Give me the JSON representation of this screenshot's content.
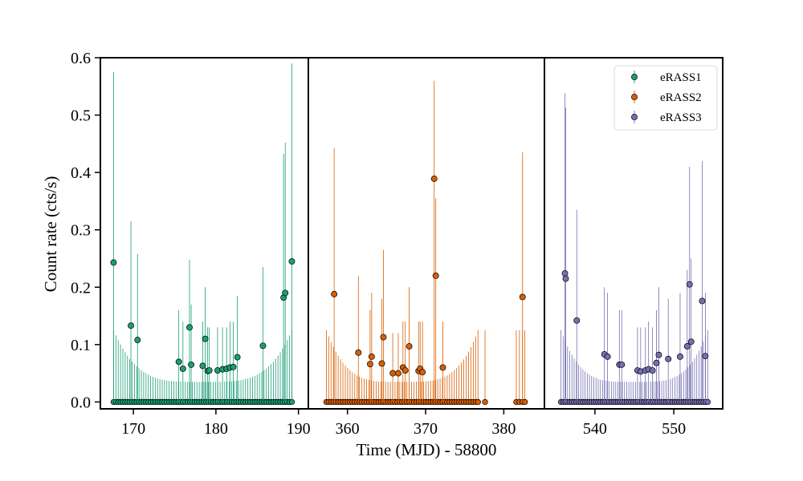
{
  "chart_data": {
    "type": "scatter",
    "xlabel": "Time (MJD) - 58800",
    "ylabel": "Count rate (cts/s)",
    "ylim": [
      -0.012,
      0.6
    ],
    "yticks": [
      "0.0",
      "0.1",
      "0.2",
      "0.3",
      "0.4",
      "0.5",
      "0.6"
    ],
    "legend": {
      "placement": "top-right"
    },
    "panels": [
      {
        "xlim": [
          166.0,
          191.2
        ],
        "xticks": [
          "170",
          "180",
          "190"
        ],
        "series": [
          {
            "name": "eRASS1",
            "color": "#1b9e77",
            "zero_points": {
              "start": 167.6,
              "end": 189.2,
              "count": 78
            },
            "points": [
              {
                "x": 167.6,
                "y": 0.243,
                "hi": 0.575
              },
              {
                "x": 169.7,
                "y": 0.133,
                "hi": 0.315
              },
              {
                "x": 170.5,
                "y": 0.108,
                "hi": 0.258
              },
              {
                "x": 175.5,
                "y": 0.07,
                "hi": 0.16
              },
              {
                "x": 176.0,
                "y": 0.058,
                "hi": 0.14
              },
              {
                "x": 176.8,
                "y": 0.13,
                "hi": 0.248
              },
              {
                "x": 177.0,
                "y": 0.065,
                "hi": 0.17
              },
              {
                "x": 178.4,
                "y": 0.063,
                "hi": 0.14
              },
              {
                "x": 178.7,
                "y": 0.11,
                "hi": 0.2
              },
              {
                "x": 179.0,
                "y": 0.054,
                "hi": 0.13
              },
              {
                "x": 179.2,
                "y": 0.055,
                "hi": 0.13
              },
              {
                "x": 180.2,
                "y": 0.055,
                "hi": 0.13
              },
              {
                "x": 180.8,
                "y": 0.057,
                "hi": 0.13
              },
              {
                "x": 181.3,
                "y": 0.058,
                "hi": 0.13
              },
              {
                "x": 181.7,
                "y": 0.06,
                "hi": 0.14
              },
              {
                "x": 182.1,
                "y": 0.061,
                "hi": 0.14
              },
              {
                "x": 182.6,
                "y": 0.078,
                "hi": 0.185
              },
              {
                "x": 185.7,
                "y": 0.098,
                "hi": 0.235
              },
              {
                "x": 188.2,
                "y": 0.182,
                "hi": 0.432
              },
              {
                "x": 188.4,
                "y": 0.19,
                "hi": 0.452
              },
              {
                "x": 189.2,
                "y": 0.245,
                "hi": 0.59
              }
            ]
          }
        ]
      },
      {
        "xlim": [
          355.0,
          385.2
        ],
        "xticks": [
          "360",
          "370",
          "380"
        ],
        "series": [
          {
            "name": "eRASS2",
            "color": "#d95f02",
            "zero_points": {
              "start": 357.3,
              "end": 376.7,
              "count": 65
            },
            "extra_zero_x": [
              377.6,
              381.6,
              382.0,
              382.4,
              382.7
            ],
            "points": [
              {
                "x": 358.3,
                "y": 0.188,
                "hi": 0.443
              },
              {
                "x": 361.4,
                "y": 0.086,
                "hi": 0.22
              },
              {
                "x": 362.9,
                "y": 0.066,
                "hi": 0.16
              },
              {
                "x": 363.1,
                "y": 0.079,
                "hi": 0.19
              },
              {
                "x": 364.4,
                "y": 0.067,
                "hi": 0.18
              },
              {
                "x": 364.6,
                "y": 0.113,
                "hi": 0.265
              },
              {
                "x": 365.8,
                "y": 0.05,
                "hi": 0.12
              },
              {
                "x": 366.5,
                "y": 0.05,
                "hi": 0.12
              },
              {
                "x": 367.1,
                "y": 0.06,
                "hi": 0.14
              },
              {
                "x": 367.4,
                "y": 0.055,
                "hi": 0.14
              },
              {
                "x": 367.9,
                "y": 0.097,
                "hi": 0.2
              },
              {
                "x": 369.1,
                "y": 0.054,
                "hi": 0.14
              },
              {
                "x": 369.3,
                "y": 0.058,
                "hi": 0.14
              },
              {
                "x": 369.6,
                "y": 0.052,
                "hi": 0.14
              },
              {
                "x": 371.1,
                "y": 0.389,
                "hi": 0.56
              },
              {
                "x": 371.3,
                "y": 0.22,
                "hi": 0.355
              },
              {
                "x": 372.2,
                "y": 0.06,
                "hi": 0.14
              },
              {
                "x": 382.4,
                "y": 0.183,
                "hi": 0.435
              }
            ]
          }
        ]
      },
      {
        "xlim": [
          533.6,
          556.2
        ],
        "xticks": [
          "540",
          "550"
        ],
        "series": [
          {
            "name": "eRASS3",
            "color": "#7570b3",
            "zero_points": {
              "start": 535.7,
              "end": 554.3,
              "count": 68
            },
            "points": [
              {
                "x": 536.2,
                "y": 0.224,
                "hi": 0.538
              },
              {
                "x": 536.3,
                "y": 0.215,
                "hi": 0.513
              },
              {
                "x": 537.7,
                "y": 0.142,
                "hi": 0.335
              },
              {
                "x": 541.2,
                "y": 0.083,
                "hi": 0.2
              },
              {
                "x": 541.6,
                "y": 0.079,
                "hi": 0.19
              },
              {
                "x": 543.1,
                "y": 0.065,
                "hi": 0.16
              },
              {
                "x": 543.4,
                "y": 0.065,
                "hi": 0.16
              },
              {
                "x": 545.4,
                "y": 0.055,
                "hi": 0.13
              },
              {
                "x": 545.8,
                "y": 0.053,
                "hi": 0.13
              },
              {
                "x": 546.4,
                "y": 0.055,
                "hi": 0.13
              },
              {
                "x": 546.8,
                "y": 0.057,
                "hi": 0.14
              },
              {
                "x": 547.3,
                "y": 0.055,
                "hi": 0.13
              },
              {
                "x": 547.8,
                "y": 0.068,
                "hi": 0.16
              },
              {
                "x": 548.1,
                "y": 0.082,
                "hi": 0.2
              },
              {
                "x": 549.3,
                "y": 0.075,
                "hi": 0.18
              },
              {
                "x": 550.8,
                "y": 0.079,
                "hi": 0.19
              },
              {
                "x": 551.7,
                "y": 0.097,
                "hi": 0.23
              },
              {
                "x": 552.0,
                "y": 0.205,
                "hi": 0.41
              },
              {
                "x": 552.2,
                "y": 0.105,
                "hi": 0.25
              },
              {
                "x": 553.6,
                "y": 0.176,
                "hi": 0.42
              },
              {
                "x": 554.0,
                "y": 0.08,
                "hi": 0.19
              }
            ]
          }
        ]
      }
    ]
  }
}
